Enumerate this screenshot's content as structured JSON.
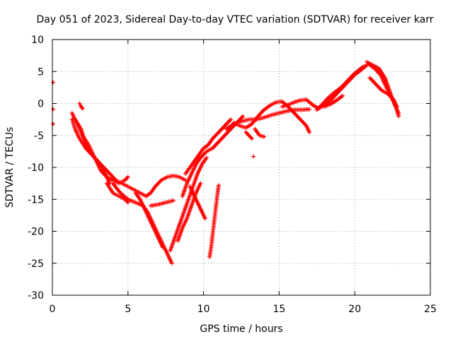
{
  "chart_data": {
    "type": "scatter",
    "title": "Day 051 of 2023, Sidereal Day-to-day VTEC variation (SDTVAR) for receiver karr",
    "xlabel": "GPS time / hours",
    "ylabel": "SDTVAR / TECUs",
    "xlim": [
      0,
      25
    ],
    "ylim": [
      -30,
      10
    ],
    "xticks": [
      "0",
      "5",
      "10",
      "15",
      "20",
      "25"
    ],
    "yticks": [
      "10",
      "5",
      "0",
      "-5",
      "-10",
      "-15",
      "-20",
      "-25",
      "-30"
    ],
    "xtick_values": [
      0,
      5,
      10,
      15,
      20,
      25
    ],
    "ytick_values": [
      10,
      5,
      0,
      -5,
      -10,
      -15,
      -20,
      -25,
      -30
    ],
    "grid": true,
    "marker": "+",
    "color": "#ff0000",
    "series": [
      {
        "x": [
          0.05,
          0.05,
          0.05
        ],
        "y": [
          3.3,
          -0.9,
          -3.2
        ]
      },
      {
        "x": [
          1.3,
          1.6,
          2.0,
          2.4,
          2.8,
          3.2,
          3.6,
          4.0,
          4.4,
          4.8,
          5.0
        ],
        "y": [
          -1.5,
          -3.0,
          -5.0,
          -6.5,
          -8.5,
          -10.5,
          -11.5,
          -12.0,
          -12.5,
          -12.0,
          -11.5
        ]
      },
      {
        "x": [
          1.5,
          1.9,
          2.2,
          2.6,
          3.0,
          3.3,
          3.6,
          3.8
        ],
        "y": [
          -2.5,
          -4.0,
          -6.5,
          -8.0,
          -9.0,
          -10.0,
          -11.5,
          -12.5
        ]
      },
      {
        "x": [
          1.8,
          1.9,
          2.0
        ],
        "y": [
          0.0,
          -0.5,
          -0.8
        ]
      },
      {
        "x": [
          1.3,
          1.5,
          1.8,
          2.2,
          2.6,
          3.0,
          3.4,
          3.8,
          4.2,
          4.6,
          5.0,
          5.4,
          5.8,
          6.2,
          6.5,
          6.8,
          7.2,
          7.6,
          8.0,
          8.4,
          8.8
        ],
        "y": [
          -2.5,
          -4.0,
          -5.5,
          -7.0,
          -8.0,
          -9.0,
          -10.0,
          -11.0,
          -12.0,
          -12.5,
          -13.0,
          -13.5,
          -14.0,
          -14.5,
          -14.0,
          -13.0,
          -12.0,
          -11.5,
          -11.3,
          -11.5,
          -12.0
        ]
      },
      {
        "x": [
          3.6,
          4.0,
          4.4,
          4.8,
          5.0
        ],
        "y": [
          -12.5,
          -14.0,
          -14.5,
          -15.0,
          -15.5
        ]
      },
      {
        "x": [
          4.0,
          4.5,
          5.0,
          5.5,
          6.0,
          6.3,
          6.6,
          7.0,
          7.4,
          7.7,
          7.9
        ],
        "y": [
          -12.5,
          -14.0,
          -15.0,
          -15.5,
          -16.0,
          -17.0,
          -18.5,
          -20.5,
          -22.5,
          -24.0,
          -25.0
        ]
      },
      {
        "x": [
          5.5,
          5.8,
          6.0,
          6.3,
          6.6,
          6.9,
          7.1,
          7.3
        ],
        "y": [
          -14.0,
          -15.0,
          -16.0,
          -17.5,
          -19.0,
          -20.5,
          -21.5,
          -22.5
        ]
      },
      {
        "x": [
          6.5,
          7.0,
          7.5,
          8.0
        ],
        "y": [
          -16.0,
          -15.8,
          -15.5,
          -15.2
        ]
      },
      {
        "x": [
          7.8,
          8.1,
          8.4,
          8.7,
          9.0,
          9.3,
          9.6,
          9.9,
          10.2
        ],
        "y": [
          -23.0,
          -21.0,
          -19.0,
          -17.0,
          -15.0,
          -13.0,
          -11.0,
          -9.5,
          -8.5
        ]
      },
      {
        "x": [
          8.3,
          8.6,
          8.9,
          9.2,
          9.5,
          9.8
        ],
        "y": [
          -21.5,
          -19.5,
          -18.0,
          -16.0,
          -14.0,
          -12.5
        ]
      },
      {
        "x": [
          8.6,
          8.9,
          9.2,
          9.5,
          9.8,
          10.2,
          10.6,
          11.0,
          11.4,
          11.8,
          12.2,
          12.6
        ],
        "y": [
          -14.5,
          -12.5,
          -11.0,
          -9.5,
          -8.5,
          -7.5,
          -7.0,
          -6.0,
          -5.0,
          -4.0,
          -3.0,
          -2.0
        ]
      },
      {
        "x": [
          8.8,
          9.1,
          9.4,
          9.7,
          10.0,
          10.3,
          10.6,
          11.0,
          11.4,
          11.8
        ],
        "y": [
          -11.0,
          -10.0,
          -9.0,
          -8.0,
          -7.0,
          -6.5,
          -5.5,
          -4.5,
          -3.5,
          -2.5
        ]
      },
      {
        "x": [
          9.1,
          9.3,
          9.5,
          9.7,
          9.9,
          10.1
        ],
        "y": [
          -13.0,
          -14.0,
          -15.0,
          -16.0,
          -17.0,
          -18.0
        ]
      },
      {
        "x": [
          10.4,
          10.5,
          10.6,
          10.7,
          10.8,
          10.9,
          11.0
        ],
        "y": [
          -24.0,
          -22.5,
          -20.5,
          -18.5,
          -16.5,
          -14.5,
          -12.8
        ]
      },
      {
        "x": [
          11.5,
          12.0,
          12.5,
          13.0,
          13.5,
          14.0,
          14.5,
          15.0,
          15.5,
          16.0,
          16.5,
          17.0
        ],
        "y": [
          -4.0,
          -3.2,
          -2.8,
          -2.5,
          -2.5,
          -2.2,
          -1.8,
          -1.5,
          -1.2,
          -1.0,
          -1.0,
          -0.9
        ]
      },
      {
        "x": [
          12.0,
          12.4,
          12.8,
          13.2,
          13.6,
          14.0,
          14.4,
          14.8,
          15.2,
          15.6,
          16.0,
          16.4,
          16.8,
          17.0
        ],
        "y": [
          -3.0,
          -3.5,
          -3.8,
          -3.2,
          -2.0,
          -1.0,
          -0.3,
          0.2,
          0.3,
          -0.5,
          -1.5,
          -2.5,
          -3.5,
          -4.5
        ]
      },
      {
        "x": [
          12.8,
          13.0,
          13.2
        ],
        "y": [
          -4.5,
          -5.0,
          -5.5
        ]
      },
      {
        "x": [
          13.3
        ],
        "y": [
          -8.3
        ]
      },
      {
        "x": [
          13.4,
          13.7,
          14.0
        ],
        "y": [
          -4.0,
          -5.0,
          -5.2
        ]
      },
      {
        "x": [
          15.2,
          15.6,
          16.0,
          16.4,
          16.8,
          17.2,
          17.6,
          18.0,
          18.4,
          18.8,
          19.2,
          19.6,
          20.0,
          20.4,
          20.8
        ],
        "y": [
          -0.5,
          -0.2,
          0.2,
          0.5,
          0.6,
          -0.2,
          -0.8,
          -0.3,
          0.5,
          1.5,
          2.5,
          3.5,
          4.5,
          5.2,
          6.0
        ]
      },
      {
        "x": [
          17.5,
          17.9,
          18.3,
          18.7,
          19.1,
          19.5,
          19.9,
          20.3,
          20.6
        ],
        "y": [
          -1.0,
          0.0,
          1.0,
          1.8,
          2.5,
          3.5,
          4.5,
          5.3,
          5.8
        ]
      },
      {
        "x": [
          18.0,
          18.4,
          18.8,
          19.2
        ],
        "y": [
          -0.5,
          -0.1,
          0.5,
          1.2
        ]
      },
      {
        "x": [
          20.8,
          21.2,
          21.6,
          22.0,
          22.3,
          22.6,
          22.9
        ],
        "y": [
          6.5,
          6.0,
          5.5,
          4.0,
          2.0,
          0.0,
          -1.5
        ]
      },
      {
        "x": [
          20.9,
          21.3,
          21.7,
          22.0,
          22.4,
          22.8
        ],
        "y": [
          6.2,
          5.5,
          4.5,
          3.0,
          1.0,
          -0.5
        ]
      },
      {
        "x": [
          21.0,
          21.4,
          21.8,
          22.2,
          22.6,
          22.9
        ],
        "y": [
          4.0,
          3.0,
          2.0,
          1.5,
          0.5,
          -2.0
        ]
      }
    ]
  }
}
